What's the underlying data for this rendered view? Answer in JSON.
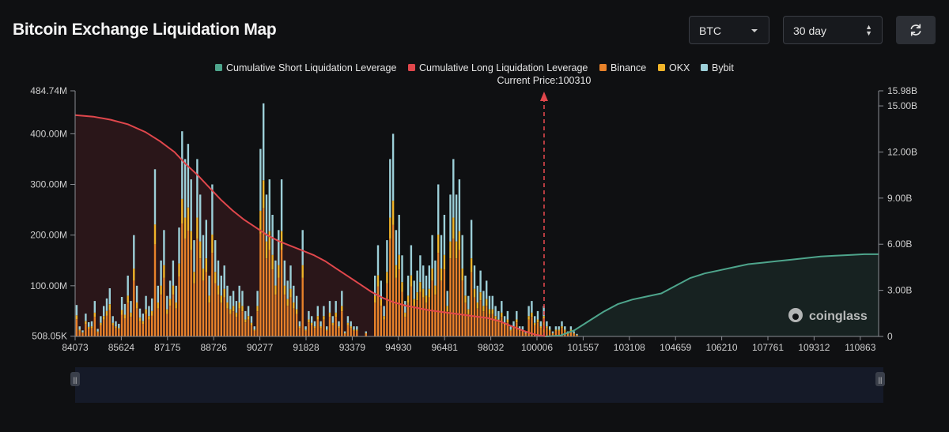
{
  "header": {
    "title": "Bitcoin Exchange Liquidation Map",
    "coin_select": "BTC",
    "period_select": "30 day",
    "refresh_icon": "refresh-icon"
  },
  "watermark": "coinglass",
  "colors": {
    "short_line": "#4ea58c",
    "long_line": "#e0474c",
    "binance": "#e8822a",
    "okx": "#f0b429",
    "bybit": "#9ccfd8"
  },
  "chart_data": {
    "type": "bar",
    "current_price_label": "Current Price:100310",
    "current_price": 100310,
    "legend": [
      {
        "name": "Cumulative Short Liquidation Leverage",
        "color": "#4ea58c"
      },
      {
        "name": "Cumulative Long Liquidation Leverage",
        "color": "#e0474c"
      },
      {
        "name": "Binance",
        "color": "#e8822a"
      },
      {
        "name": "OKX",
        "color": "#f0b429"
      },
      {
        "name": "Bybit",
        "color": "#9ccfd8"
      }
    ],
    "x_ticks": [
      "84073",
      "85624",
      "87175",
      "88726",
      "90277",
      "91828",
      "93379",
      "94930",
      "96481",
      "98032",
      "100006",
      "101557",
      "103108",
      "104659",
      "106210",
      "107761",
      "109312",
      "110863"
    ],
    "x_range": [
      84073,
      111800
    ],
    "y_left_ticks": [
      "484.74M",
      "400.00M",
      "300.00M",
      "200.00M",
      "100.00M",
      "508.05K"
    ],
    "y_left_values": [
      484.74,
      400,
      300,
      200,
      100,
      0.508
    ],
    "y_left_range": [
      0,
      484.74
    ],
    "y_right_ticks": [
      "15.98B",
      "15.00B",
      "12.00B",
      "9.00B",
      "6.00B",
      "3.00B",
      "0"
    ],
    "y_right_values": [
      15.98,
      15,
      12,
      9,
      6,
      3,
      0
    ],
    "y_right_range": [
      0,
      15.98
    ],
    "cumulative_long": {
      "x": [
        84073,
        84700,
        85300,
        85900,
        86500,
        87000,
        87500,
        87900,
        88300,
        88700,
        89100,
        89500,
        89900,
        90300,
        90700,
        91100,
        91500,
        91900,
        92300,
        92700,
        93100,
        93500,
        93900,
        94300,
        94700,
        95100,
        95500,
        95900,
        96300,
        96700,
        97100,
        97500,
        97900,
        98300,
        98700,
        99100,
        99500,
        99800,
        100006,
        100310
      ],
      "values": [
        14.4,
        14.3,
        14.1,
        13.8,
        13.3,
        12.7,
        12.0,
        11.2,
        10.5,
        9.7,
        8.9,
        8.2,
        7.6,
        7.1,
        6.6,
        6.2,
        5.9,
        5.6,
        5.3,
        4.9,
        4.4,
        3.9,
        3.4,
        2.9,
        2.5,
        2.2,
        2.0,
        1.85,
        1.7,
        1.6,
        1.5,
        1.4,
        1.3,
        1.2,
        1.0,
        0.7,
        0.4,
        0.2,
        0.1,
        0
      ]
    },
    "cumulative_short": {
      "x": [
        100310,
        100800,
        101300,
        101800,
        102300,
        102800,
        103300,
        103800,
        104300,
        104800,
        105300,
        105800,
        106300,
        106800,
        107300,
        107800,
        108300,
        108800,
        109300,
        109800,
        110300,
        110800,
        111300,
        111800
      ],
      "values": [
        0,
        0.05,
        0.4,
        1.0,
        1.6,
        2.1,
        2.4,
        2.6,
        2.8,
        3.3,
        3.8,
        4.1,
        4.3,
        4.5,
        4.7,
        4.8,
        4.9,
        5.0,
        5.1,
        5.2,
        5.25,
        5.3,
        5.35,
        5.35
      ]
    },
    "bars": {
      "x_start": 84073,
      "x_step": 104,
      "totals": [
        62,
        20,
        12,
        45,
        28,
        30,
        70,
        15,
        40,
        60,
        75,
        95,
        40,
        30,
        25,
        78,
        64,
        120,
        70,
        200,
        100,
        55,
        45,
        80,
        60,
        75,
        330,
        100,
        150,
        210,
        80,
        110,
        150,
        100,
        215,
        405,
        350,
        380,
        310,
        190,
        350,
        280,
        200,
        230,
        120,
        300,
        190,
        150,
        120,
        140,
        100,
        80,
        90,
        70,
        100,
        90,
        50,
        60,
        40,
        20,
        90,
        370,
        460,
        280,
        310,
        240,
        150,
        210,
        310,
        150,
        110,
        140,
        100,
        80,
        30,
        210,
        20,
        50,
        40,
        30,
        60,
        30,
        60,
        20,
        70,
        40,
        70,
        30,
        90,
        10,
        40,
        30,
        20,
        20,
        0,
        0,
        10,
        0,
        0,
        120,
        180,
        110,
        60,
        190,
        350,
        400,
        210,
        240,
        160,
        70,
        120,
        180,
        110,
        130,
        160,
        140,
        120,
        140,
        200,
        150,
        300,
        200,
        240,
        90,
        280,
        350,
        280,
        310,
        200,
        120,
        80,
        230,
        140,
        100,
        130,
        90,
        110,
        80,
        80,
        60,
        50,
        70,
        40,
        50,
        20,
        30,
        50,
        20,
        20,
        10,
        60,
        70,
        40,
        50,
        30,
        60,
        30,
        20,
        10,
        20,
        20,
        30,
        20,
        10,
        20,
        10,
        5
      ]
    }
  }
}
